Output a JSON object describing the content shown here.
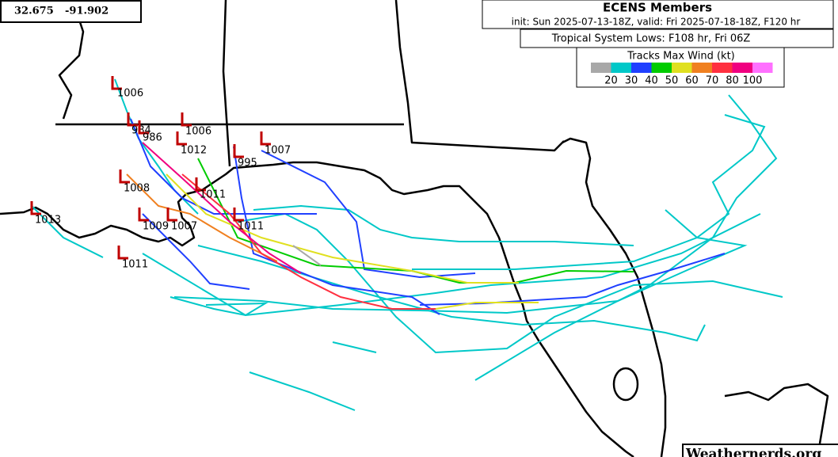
{
  "coordinates": {
    "lat": "32.675",
    "lon": "-91.902"
  },
  "header": {
    "title": "ECENS Members",
    "subtitle": "init: Sun 2025-07-13-18Z, valid: Fri 2025-07-18-18Z, F120 hr",
    "lows_label": "Tropical System Lows: F108 hr, Fri 06Z"
  },
  "legend": {
    "title": "Tracks Max Wind (kt)",
    "colors": [
      "#a8a8a8",
      "#00c8c8",
      "#2040ff",
      "#00cc00",
      "#e0e020",
      "#f08020",
      "#ff3040",
      "#f00080",
      "#ff70ff"
    ],
    "labels": [
      "20",
      "30",
      "40",
      "50",
      "60",
      "70",
      "80",
      "100"
    ]
  },
  "lows": [
    "1006",
    "984",
    "986",
    "1006",
    "1012",
    "1007",
    "995",
    "1011",
    "1008",
    "1011",
    "1009",
    "1007",
    "1013",
    "1011"
  ],
  "watermark": "Weathernerds.org"
}
